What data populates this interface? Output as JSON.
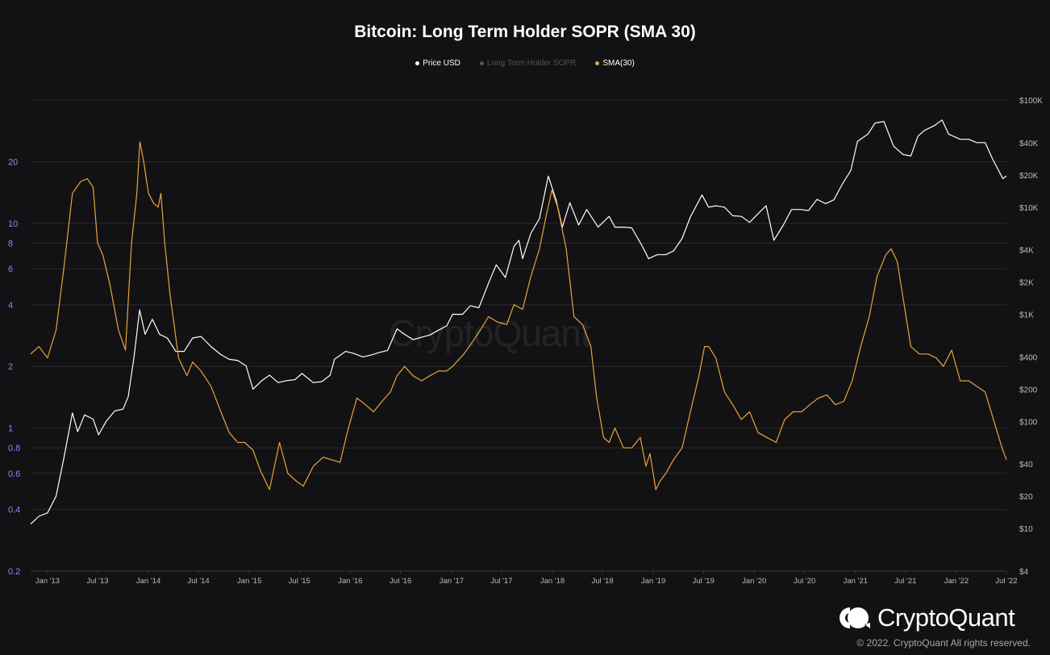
{
  "chart_data": {
    "type": "line",
    "title": "Bitcoin: Long Term Holder SOPR (SMA 30)",
    "legend_placement": "top-center",
    "legend": [
      "Price USD",
      "Long Term Holder SOPR",
      "SMA(30)"
    ],
    "colors": {
      "background": "#121214",
      "price": "#ffffff",
      "lth_sopr": "#55555c",
      "sma": "#e8a33a",
      "left_axis_labels": "#8e88ff",
      "right_axis_labels": "#bbbbbb",
      "x_axis_labels": "#bbbbbb",
      "grid": "#2b2b2f"
    },
    "grid": true,
    "x_tick_labels": [
      "Jan '13",
      "Jul '13",
      "Jan '14",
      "Jul '14",
      "Jan '15",
      "Jul '15",
      "Jan '16",
      "Jul '16",
      "Jan '17",
      "Jul '17",
      "Jan '18",
      "Jul '18",
      "Jan '19",
      "Jul '19",
      "Jan '20",
      "Jul '20",
      "Jan '21",
      "Jul '21",
      "Jan '22",
      "Jul '22"
    ],
    "xlim": [
      "2012-11-01",
      "2022-07-01"
    ],
    "left_axis": {
      "scale": "log",
      "ylim": [
        0.2,
        40
      ],
      "ticks": [
        0.2,
        0.4,
        0.6,
        0.8,
        1,
        2,
        4,
        6,
        8,
        10,
        20
      ],
      "tick_labels": [
        "0.2",
        "0.4",
        "0.6",
        "0.8",
        "1",
        "2",
        "4",
        "6",
        "8",
        "10",
        "20"
      ]
    },
    "right_axis": {
      "scale": "log",
      "ylim": [
        4,
        100000
      ],
      "ticks": [
        4,
        10,
        20,
        40,
        100,
        200,
        400,
        1000,
        2000,
        4000,
        10000,
        20000,
        40000,
        100000
      ],
      "tick_labels": [
        "$4",
        "$10",
        "$20",
        "$40",
        "$100",
        "$200",
        "$400",
        "$1K",
        "$2K",
        "$4K",
        "$10K",
        "$20K",
        "$40K",
        "$100K"
      ]
    },
    "series": [
      {
        "name": "Price USD",
        "axis": "right",
        "x": [
          "2012-11-01",
          "2012-12-01",
          "2013-01-01",
          "2013-02-01",
          "2013-03-01",
          "2013-04-01",
          "2013-04-20",
          "2013-05-15",
          "2013-06-15",
          "2013-07-05",
          "2013-08-01",
          "2013-09-01",
          "2013-10-01",
          "2013-10-20",
          "2013-11-10",
          "2013-11-30",
          "2013-12-20",
          "2014-01-15",
          "2014-02-10",
          "2014-03-10",
          "2014-04-10",
          "2014-05-10",
          "2014-06-10",
          "2014-07-10",
          "2014-08-15",
          "2014-09-20",
          "2014-10-20",
          "2014-11-20",
          "2014-12-20",
          "2015-01-14",
          "2015-02-15",
          "2015-03-15",
          "2015-04-15",
          "2015-05-15",
          "2015-06-15",
          "2015-07-10",
          "2015-08-20",
          "2015-09-20",
          "2015-10-20",
          "2015-11-05",
          "2015-12-15",
          "2016-01-15",
          "2016-02-15",
          "2016-03-15",
          "2016-04-15",
          "2016-05-15",
          "2016-06-18",
          "2016-07-15",
          "2016-08-15",
          "2016-09-15",
          "2016-10-15",
          "2016-11-15",
          "2016-12-15",
          "2017-01-05",
          "2017-02-10",
          "2017-03-10",
          "2017-04-10",
          "2017-05-20",
          "2017-06-12",
          "2017-07-15",
          "2017-08-15",
          "2017-09-02",
          "2017-09-15",
          "2017-10-15",
          "2017-11-15",
          "2017-12-17",
          "2018-01-15",
          "2018-02-06",
          "2018-03-05",
          "2018-04-06",
          "2018-05-05",
          "2018-06-15",
          "2018-07-25",
          "2018-08-15",
          "2018-09-15",
          "2018-10-15",
          "2018-11-20",
          "2018-12-15",
          "2019-01-15",
          "2019-02-15",
          "2019-03-15",
          "2019-04-15",
          "2019-05-15",
          "2019-06-26",
          "2019-07-20",
          "2019-08-15",
          "2019-09-15",
          "2019-10-15",
          "2019-11-15",
          "2019-12-15",
          "2020-01-15",
          "2020-02-13",
          "2020-03-12",
          "2020-04-15",
          "2020-05-15",
          "2020-06-15",
          "2020-07-15",
          "2020-08-15",
          "2020-09-15",
          "2020-10-15",
          "2020-11-15",
          "2020-12-15",
          "2021-01-08",
          "2021-02-15",
          "2021-03-13",
          "2021-04-14",
          "2021-05-19",
          "2021-06-22",
          "2021-07-20",
          "2021-08-15",
          "2021-09-07",
          "2021-10-15",
          "2021-11-10",
          "2021-12-04",
          "2022-01-15",
          "2022-02-15",
          "2022-03-15",
          "2022-04-15",
          "2022-05-12",
          "2022-06-18",
          "2022-07-01"
        ],
        "values": [
          11,
          13,
          14,
          20,
          45,
          120,
          80,
          115,
          105,
          75,
          100,
          125,
          130,
          170,
          400,
          1100,
          650,
          900,
          650,
          600,
          450,
          450,
          600,
          620,
          500,
          420,
          380,
          370,
          330,
          200,
          240,
          270,
          230,
          240,
          245,
          280,
          230,
          235,
          270,
          380,
          450,
          430,
          400,
          415,
          440,
          460,
          730,
          650,
          580,
          610,
          640,
          710,
          780,
          1000,
          1000,
          1200,
          1150,
          2100,
          2900,
          2200,
          4300,
          4900,
          3300,
          5700,
          7800,
          19500,
          11500,
          6500,
          11000,
          6800,
          9500,
          6500,
          8200,
          6500,
          6500,
          6400,
          4400,
          3300,
          3600,
          3600,
          3900,
          5100,
          8100,
          13000,
          10000,
          10300,
          10000,
          8300,
          8200,
          7200,
          8700,
          10300,
          4900,
          6800,
          9500,
          9500,
          9300,
          11800,
          10800,
          11700,
          16500,
          22000,
          41000,
          48000,
          61000,
          63000,
          37000,
          31000,
          30000,
          46000,
          52000,
          58000,
          65000,
          48000,
          43000,
          43000,
          40000,
          40000,
          28000,
          18500,
          19500
        ]
      },
      {
        "name": "SMA(30)",
        "axis": "left",
        "x": [
          "2012-11-01",
          "2012-12-01",
          "2013-01-01",
          "2013-02-01",
          "2013-03-01",
          "2013-04-01",
          "2013-05-01",
          "2013-05-25",
          "2013-06-15",
          "2013-07-01",
          "2013-07-20",
          "2013-08-15",
          "2013-09-15",
          "2013-10-10",
          "2013-11-01",
          "2013-11-20",
          "2013-12-01",
          "2013-12-15",
          "2014-01-01",
          "2014-01-20",
          "2014-02-05",
          "2014-02-15",
          "2014-03-01",
          "2014-03-20",
          "2014-04-20",
          "2014-05-20",
          "2014-06-10",
          "2014-07-10",
          "2014-08-15",
          "2014-09-20",
          "2014-10-20",
          "2014-11-20",
          "2014-12-15",
          "2015-01-14",
          "2015-02-10",
          "2015-03-15",
          "2015-04-20",
          "2015-05-20",
          "2015-06-20",
          "2015-07-15",
          "2015-08-20",
          "2015-09-25",
          "2015-10-25",
          "2015-11-25",
          "2015-12-25",
          "2016-01-25",
          "2016-02-25",
          "2016-03-25",
          "2016-04-25",
          "2016-05-25",
          "2016-06-18",
          "2016-07-15",
          "2016-08-15",
          "2016-09-15",
          "2016-10-15",
          "2016-11-15",
          "2016-12-15",
          "2017-01-05",
          "2017-02-15",
          "2017-03-15",
          "2017-04-15",
          "2017-05-15",
          "2017-06-15",
          "2017-07-20",
          "2017-08-15",
          "2017-09-15",
          "2017-10-15",
          "2017-11-15",
          "2017-12-10",
          "2017-12-30",
          "2018-01-20",
          "2018-02-20",
          "2018-03-20",
          "2018-04-20",
          "2018-05-20",
          "2018-06-10",
          "2018-07-05",
          "2018-07-25",
          "2018-08-15",
          "2018-09-15",
          "2018-10-15",
          "2018-11-15",
          "2018-12-05",
          "2018-12-20",
          "2019-01-10",
          "2019-01-25",
          "2019-02-15",
          "2019-03-15",
          "2019-04-15",
          "2019-05-15",
          "2019-06-15",
          "2019-07-05",
          "2019-07-20",
          "2019-08-15",
          "2019-09-15",
          "2019-10-15",
          "2019-11-15",
          "2019-12-15",
          "2020-01-15",
          "2020-02-15",
          "2020-03-20",
          "2020-04-20",
          "2020-05-20",
          "2020-06-20",
          "2020-07-20",
          "2020-08-20",
          "2020-09-20",
          "2020-10-20",
          "2020-11-20",
          "2020-12-20",
          "2021-01-20",
          "2021-02-20",
          "2021-03-20",
          "2021-04-20",
          "2021-05-10",
          "2021-06-01",
          "2021-06-20",
          "2021-07-20",
          "2021-08-20",
          "2021-09-20",
          "2021-10-20",
          "2021-11-15",
          "2021-12-15",
          "2022-01-15",
          "2022-02-15",
          "2022-03-15",
          "2022-04-15",
          "2022-05-15",
          "2022-06-15",
          "2022-07-01"
        ],
        "values": [
          2.3,
          2.5,
          2.2,
          3.0,
          6.0,
          14.0,
          16.0,
          16.5,
          15.0,
          8.0,
          7.0,
          5.0,
          3.0,
          2.4,
          8.0,
          14.0,
          25.0,
          20.0,
          14.0,
          12.5,
          12.0,
          14.0,
          8.0,
          4.5,
          2.2,
          1.8,
          2.1,
          1.9,
          1.6,
          1.2,
          0.95,
          0.85,
          0.85,
          0.78,
          0.62,
          0.5,
          0.85,
          0.6,
          0.55,
          0.52,
          0.65,
          0.72,
          0.7,
          0.68,
          1.0,
          1.4,
          1.3,
          1.2,
          1.35,
          1.5,
          1.8,
          2.0,
          1.8,
          1.7,
          1.8,
          1.9,
          1.9,
          2.0,
          2.3,
          2.6,
          3.0,
          3.5,
          3.3,
          3.2,
          4.0,
          3.8,
          5.5,
          7.5,
          11.0,
          14.5,
          12.0,
          7.5,
          3.5,
          3.2,
          2.5,
          1.4,
          0.9,
          0.85,
          1.0,
          0.8,
          0.8,
          0.9,
          0.65,
          0.75,
          0.5,
          0.55,
          0.6,
          0.7,
          0.8,
          1.2,
          1.8,
          2.5,
          2.5,
          2.2,
          1.5,
          1.3,
          1.1,
          1.2,
          0.95,
          0.9,
          0.85,
          1.1,
          1.2,
          1.2,
          1.3,
          1.4,
          1.45,
          1.3,
          1.35,
          1.7,
          2.5,
          3.5,
          5.5,
          7.0,
          7.5,
          6.5,
          4.5,
          2.5,
          2.3,
          2.3,
          2.2,
          2.0,
          2.4,
          1.7,
          1.7,
          1.6,
          1.5,
          1.1,
          0.8,
          0.7
        ]
      }
    ]
  },
  "watermark": "CryptoQuant",
  "brand": {
    "name": "CryptoQuant",
    "copyright": "© 2022. CryptoQuant All rights reserved."
  }
}
